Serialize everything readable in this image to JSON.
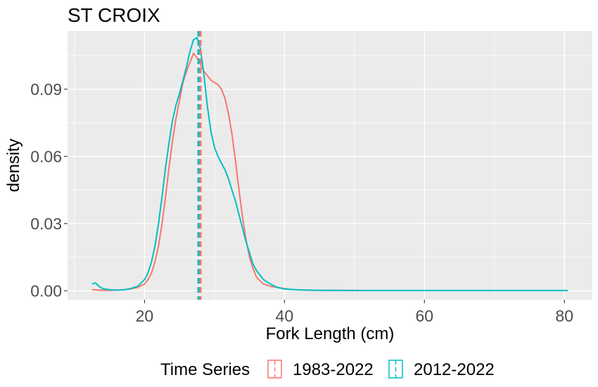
{
  "chart_data": {
    "type": "line",
    "title": "ST CROIX",
    "xlabel": "Fork Length (cm)",
    "ylabel": "density",
    "xlim": [
      9,
      84
    ],
    "ylim": [
      -0.004,
      0.116
    ],
    "xticks": [
      20,
      40,
      60,
      80
    ],
    "xtick_labels": [
      "20",
      "40",
      "60",
      "80"
    ],
    "yticks": [
      0,
      0.03,
      0.06,
      0.09
    ],
    "ytick_labels": [
      "0.00",
      "0.03",
      "0.06",
      "0.09"
    ],
    "grid": true,
    "legend": {
      "title": "Time Series",
      "placement": "bottom"
    },
    "series": [
      {
        "name": "1983-2022",
        "color": "#F8766D",
        "mean_line": 28.0,
        "x": [
          12.5,
          14,
          15,
          16,
          17,
          18,
          19,
          20,
          20.5,
          21,
          21.5,
          22,
          22.5,
          23,
          23.5,
          24,
          24.5,
          25,
          25.5,
          26,
          26.5,
          27,
          27.5,
          28,
          28.5,
          29,
          29.5,
          30,
          30.5,
          31,
          31.5,
          32,
          32.5,
          33,
          33.5,
          34,
          34.5,
          35,
          35.5,
          36,
          37,
          38,
          39,
          40,
          41,
          42,
          44,
          46,
          48,
          50,
          51
        ],
        "y": [
          0.0005,
          0.0002,
          0.0002,
          0.0003,
          0.0005,
          0.0008,
          0.0015,
          0.003,
          0.005,
          0.008,
          0.013,
          0.02,
          0.03,
          0.042,
          0.055,
          0.067,
          0.077,
          0.085,
          0.093,
          0.098,
          0.102,
          0.106,
          0.104,
          0.101,
          0.098,
          0.096,
          0.094,
          0.093,
          0.092,
          0.09,
          0.086,
          0.079,
          0.07,
          0.058,
          0.045,
          0.033,
          0.023,
          0.015,
          0.01,
          0.006,
          0.003,
          0.002,
          0.0015,
          0.001,
          0.0006,
          0.0004,
          0.0002,
          0.0002,
          0.0002,
          0.0002,
          0.0001
        ]
      },
      {
        "name": "2012-2022",
        "color": "#00BFC4",
        "mean_line": 27.7,
        "x": [
          12.5,
          13,
          13.5,
          14,
          15,
          16,
          17,
          18,
          19,
          20,
          20.5,
          21,
          21.5,
          22,
          22.5,
          23,
          23.5,
          24,
          24.5,
          25,
          25.5,
          26,
          26.5,
          27,
          27.5,
          28,
          28.5,
          29,
          29.5,
          30,
          30.5,
          31,
          31.5,
          32,
          32.5,
          33,
          33.5,
          34,
          34.5,
          35,
          35.5,
          36,
          37,
          38,
          39,
          40,
          42,
          45,
          50,
          60,
          70,
          80.5
        ],
        "y": [
          0.003,
          0.0035,
          0.002,
          0.001,
          0.0005,
          0.0003,
          0.0004,
          0.001,
          0.002,
          0.005,
          0.008,
          0.013,
          0.02,
          0.03,
          0.042,
          0.055,
          0.066,
          0.076,
          0.083,
          0.088,
          0.094,
          0.1,
          0.107,
          0.112,
          0.113,
          0.108,
          0.096,
          0.082,
          0.071,
          0.064,
          0.06,
          0.057,
          0.054,
          0.05,
          0.045,
          0.04,
          0.034,
          0.028,
          0.022,
          0.017,
          0.012,
          0.009,
          0.005,
          0.003,
          0.0015,
          0.0008,
          0.0004,
          0.0002,
          0.0001,
          0.0001,
          0.0001,
          0.0001
        ]
      }
    ]
  }
}
